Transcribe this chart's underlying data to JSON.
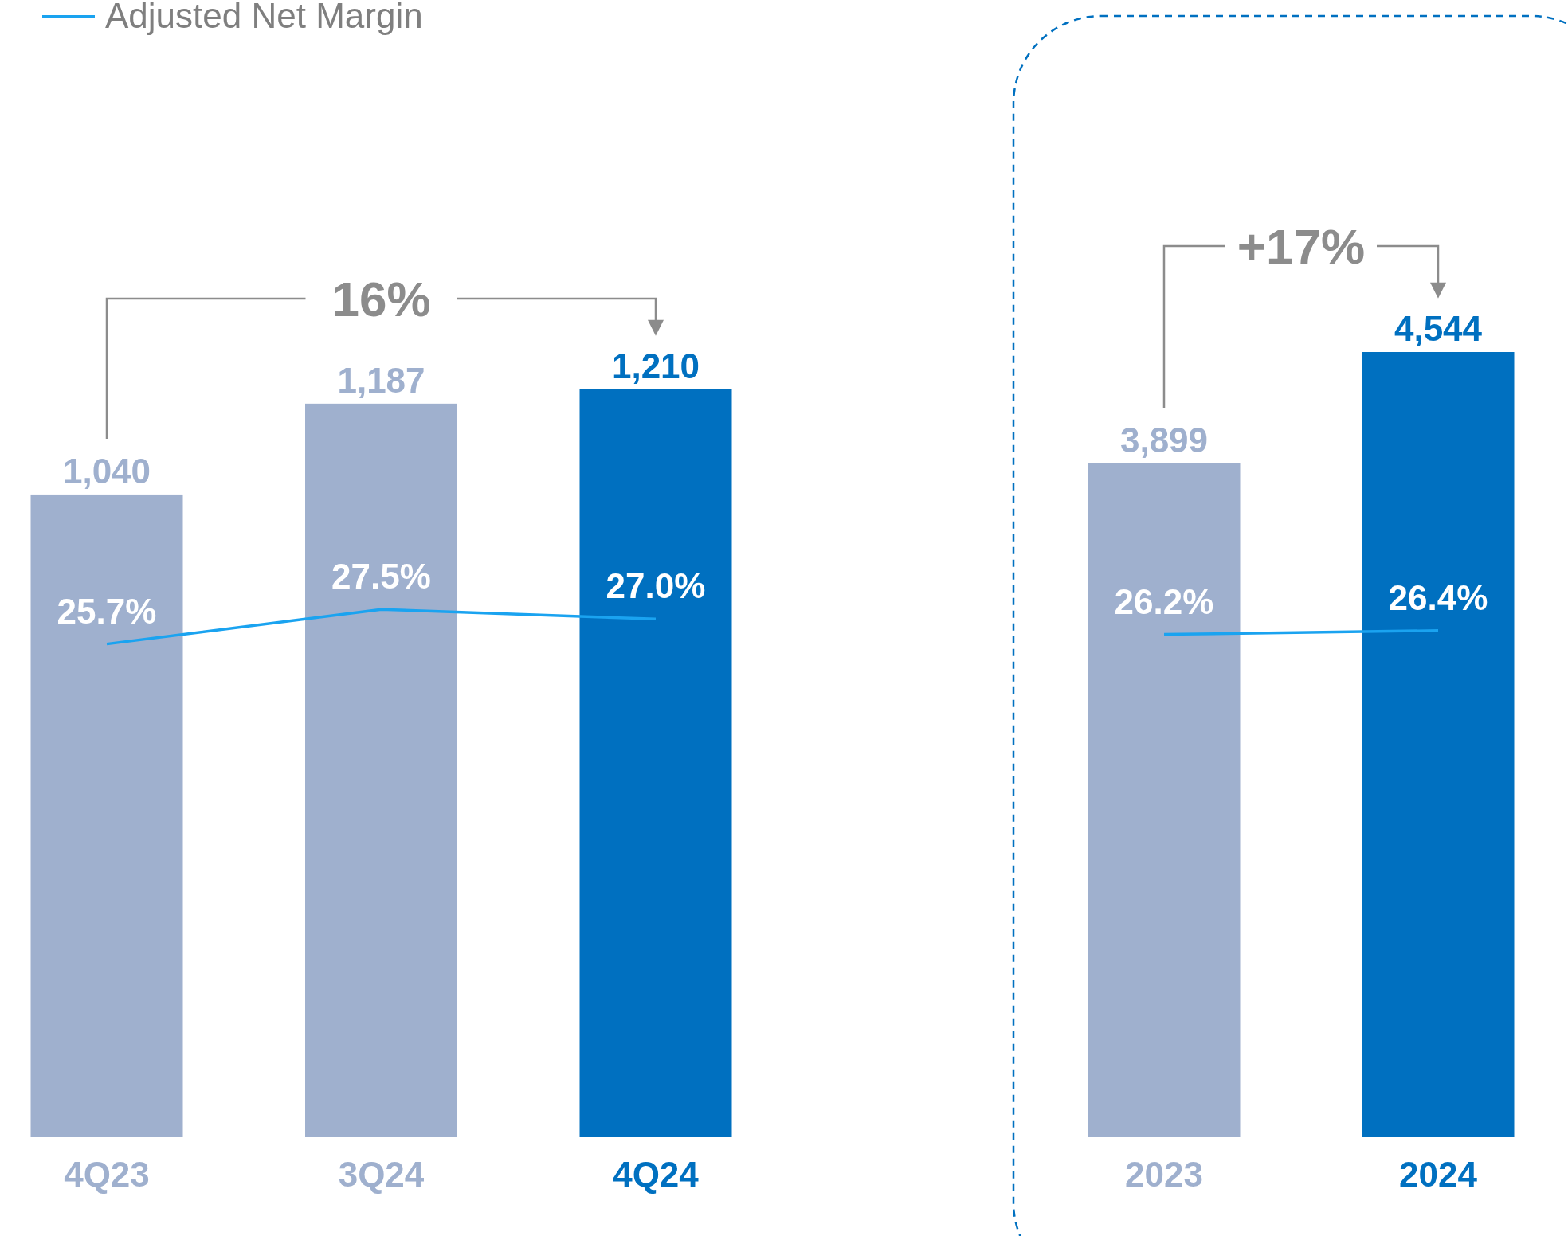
{
  "chart_data": [
    {
      "type": "bar",
      "categories": [
        "4Q23",
        "3Q24",
        "4Q24"
      ],
      "legend": "top left",
      "annotations": [
        "16%"
      ],
      "series": [
        {
          "values": [
            1040,
            1187,
            1210
          ],
          "colors": [
            "#9fb0ce",
            "#9fb0ce",
            "#0070c0"
          ],
          "value_labels": [
            "1,040",
            "1,187",
            "1,210"
          ]
        },
        {
          "type": "line",
          "name": "Adjusted Net Margin",
          "color": "#1aa3f0",
          "axis": "y2",
          "values": [
            25.7,
            27.5,
            27.0
          ],
          "value_labels": [
            "25.7%",
            "27.5%",
            "27.0%"
          ]
        }
      ]
    },
    {
      "type": "bar",
      "categories": [
        "2023",
        "2024"
      ],
      "annotations": [
        "+17%"
      ],
      "series": [
        {
          "values": [
            3899,
            4544
          ],
          "colors": [
            "#9fb0ce",
            "#0070c0"
          ],
          "value_labels": [
            "3,899",
            "4,544"
          ]
        },
        {
          "type": "line",
          "color": "#1aa3f0",
          "axis": "y2",
          "values": [
            26.2,
            26.4
          ],
          "value_labels": [
            "26.2%",
            "26.4%"
          ]
        }
      ]
    }
  ]
}
